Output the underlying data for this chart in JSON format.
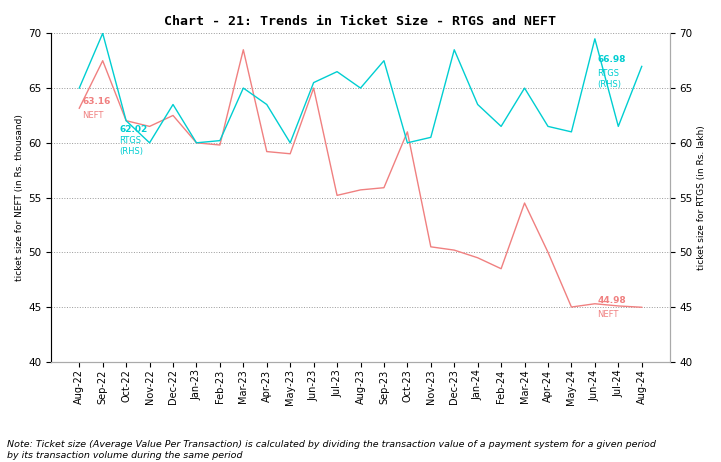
{
  "title": "Chart - 21: Trends in Ticket Size - RTGS and NEFT",
  "x_labels": [
    "Aug-22",
    "Sep-22",
    "Oct-22",
    "Nov-22",
    "Dec-22",
    "Jan-23",
    "Feb-23",
    "Mar-23",
    "Apr-23",
    "May-23",
    "Jun-23",
    "Jul-23",
    "Aug-23",
    "Sep-23",
    "Oct-23",
    "Nov-23",
    "Dec-23",
    "Jan-24",
    "Feb-24",
    "Mar-24",
    "Apr-24",
    "May-24",
    "Jun-24",
    "Jul-24",
    "Aug-24"
  ],
  "neft_values": [
    63.16,
    67.5,
    62.02,
    61.5,
    62.5,
    60.0,
    59.8,
    68.5,
    59.2,
    59.0,
    65.0,
    55.2,
    55.7,
    55.9,
    61.0,
    50.5,
    50.2,
    49.5,
    48.5,
    54.5,
    50.0,
    45.0,
    45.3,
    45.1,
    44.98
  ],
  "rtgs_values": [
    65.0,
    70.0,
    62.02,
    60.0,
    63.5,
    60.0,
    60.2,
    65.0,
    63.5,
    60.0,
    65.5,
    66.5,
    65.0,
    67.5,
    60.0,
    60.5,
    68.5,
    63.5,
    61.5,
    65.0,
    61.5,
    61.0,
    69.5,
    61.5,
    66.98
  ],
  "neft_color": "#F08080",
  "rtgs_color": "#00CED1",
  "ylim": [
    40,
    70
  ],
  "yticks": [
    40,
    45,
    50,
    55,
    60,
    65,
    70
  ],
  "ylabel_left": "ticket size for NEFT (in Rs. thousand)",
  "ylabel_right": "ticket size for RTGS (in Rs. lakh)",
  "note": "Note: Ticket size (Average Value Per Transaction) is calculated by dividing the transaction value of a payment system for a given period\nby its transaction volume during the same period",
  "figwidth": 7.21,
  "figheight": 4.62,
  "dpi": 100
}
